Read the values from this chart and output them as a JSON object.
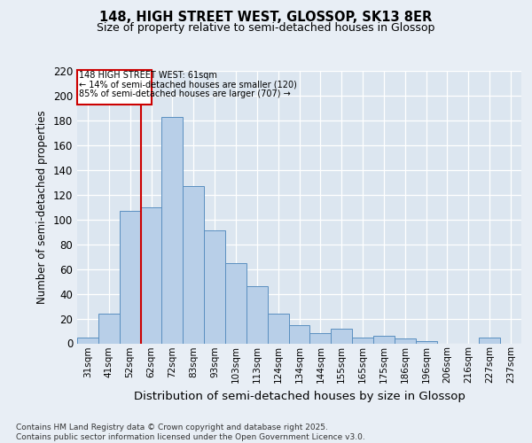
{
  "title": "148, HIGH STREET WEST, GLOSSOP, SK13 8ER",
  "subtitle": "Size of property relative to semi-detached houses in Glossop",
  "xlabel": "Distribution of semi-detached houses by size in Glossop",
  "ylabel": "Number of semi-detached properties",
  "categories": [
    "31sqm",
    "41sqm",
    "52sqm",
    "62sqm",
    "72sqm",
    "83sqm",
    "93sqm",
    "103sqm",
    "113sqm",
    "124sqm",
    "134sqm",
    "144sqm",
    "155sqm",
    "165sqm",
    "175sqm",
    "186sqm",
    "196sqm",
    "206sqm",
    "216sqm",
    "227sqm",
    "237sqm"
  ],
  "values": [
    5,
    24,
    107,
    110,
    183,
    127,
    91,
    65,
    46,
    24,
    15,
    8,
    12,
    5,
    6,
    4,
    2,
    0,
    0,
    5,
    0
  ],
  "bar_color": "#b8cfe8",
  "bar_edge_color": "#5a8fc0",
  "property_line_x": 2.5,
  "property_line_label": "148 HIGH STREET WEST: 61sqm",
  "annotation_smaller": "← 14% of semi-detached houses are smaller (120)",
  "annotation_larger": "85% of semi-detached houses are larger (707) →",
  "box_color": "#cc0000",
  "ylim": [
    0,
    220
  ],
  "yticks": [
    0,
    20,
    40,
    60,
    80,
    100,
    120,
    140,
    160,
    180,
    200,
    220
  ],
  "footer": "Contains HM Land Registry data © Crown copyright and database right 2025.\nContains public sector information licensed under the Open Government Licence v3.0.",
  "bg_color": "#e8eef5",
  "plot_bg_color": "#dce6f0"
}
